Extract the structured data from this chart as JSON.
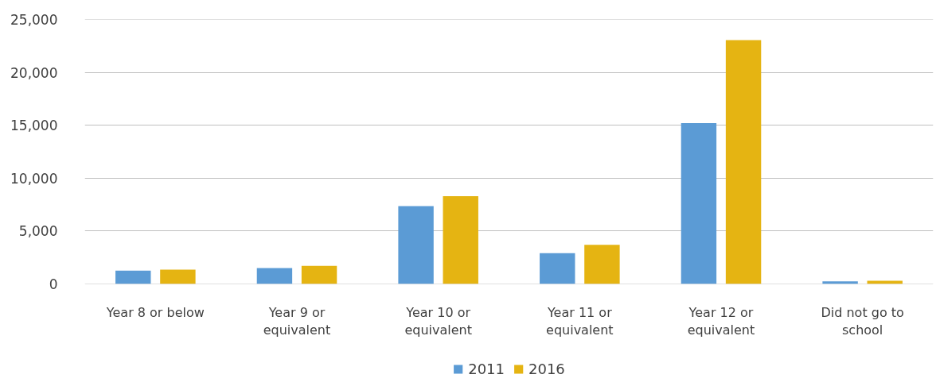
{
  "chart_data": {
    "type": "bar",
    "categories": [
      "Year 8 or below",
      "Year 9 or equivalent",
      "Year 10 or equivalent",
      "Year 11 or equivalent",
      "Year 12 or equivalent",
      "Did not go to school"
    ],
    "series": [
      {
        "name": "2011",
        "color": "#5b9bd5",
        "values": [
          1250,
          1500,
          7350,
          2900,
          15200,
          250
        ]
      },
      {
        "name": "2016",
        "color": "#e5b412",
        "values": [
          1350,
          1700,
          8300,
          3700,
          23050,
          300
        ]
      }
    ],
    "ylim": [
      0,
      25000
    ],
    "yticks": [
      0,
      {
        "value": 5000,
        "label": "5,000"
      },
      {
        "value": 10000,
        "label": "10,000"
      },
      {
        "value": 15000,
        "label": "15,000"
      },
      {
        "value": 20000,
        "label": "20,000"
      },
      {
        "value": 25000,
        "label": "25,000"
      }
    ],
    "grid": "y",
    "legend": "bottom"
  }
}
